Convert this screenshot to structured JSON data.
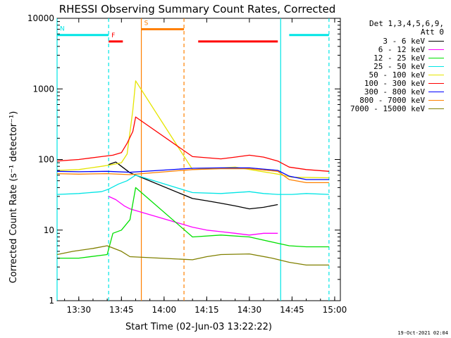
{
  "chart_data": {
    "type": "line",
    "title": "RHESSI Observing Summary Count Rates, Corrected",
    "xlabel": "Start Time (02-Jun-03 13:22:22)",
    "ylabel": "Corrected Count Rate (s⁻¹ detector⁻¹)",
    "yscale": "log",
    "xlim": [
      "13:22:22",
      "15:02:00"
    ],
    "ylim": [
      1,
      10000
    ],
    "xticks": [
      "13:30",
      "13:45",
      "14:00",
      "14:15",
      "14:30",
      "14:45",
      "15:00"
    ],
    "yticks": [
      "1",
      "10",
      "100",
      "1000",
      "10000"
    ],
    "grid": false,
    "legend_position": "top-right",
    "legend_header": [
      "Det 1,3,4,5,6,9,",
      "Att 0"
    ],
    "timestamp": "19-Oct-2021 02:04",
    "bands": [
      {
        "name": "N",
        "color": "#00e5e5",
        "y": 5800,
        "segments": [
          [
            "13:22:22",
            "13:40:30"
          ],
          [
            "14:44:00",
            "14:58:00"
          ]
        ]
      },
      {
        "name": "F",
        "color": "#ff0000",
        "y": 4700,
        "segments": [
          [
            "13:40:30",
            "13:45:30"
          ],
          [
            "14:12:00",
            "14:40:00"
          ]
        ]
      },
      {
        "name": "S",
        "color": "#ff8000",
        "y": 7000,
        "segments": [
          [
            "13:52:00",
            "14:07:00"
          ]
        ]
      }
    ],
    "vlines": [
      {
        "time": "13:22:22",
        "color": "#00e5e5",
        "style": "solid"
      },
      {
        "time": "13:40:30",
        "color": "#00e5e5",
        "style": "dashed"
      },
      {
        "time": "13:52:00",
        "color": "#ff8000",
        "style": "solid"
      },
      {
        "time": "14:07:00",
        "color": "#ff8000",
        "style": "dashed"
      },
      {
        "time": "14:41:00",
        "color": "#00e5e5",
        "style": "solid"
      },
      {
        "time": "14:58:00",
        "color": "#00e5e5",
        "style": "dashed"
      }
    ],
    "series": [
      {
        "name": "3 - 6 keV",
        "color": "#000000",
        "x": [
          "13:40:30",
          "13:43:00",
          "13:45:00",
          "13:48:00",
          "14:10:00",
          "14:15:00",
          "14:20:00",
          "14:25:00",
          "14:30:00",
          "14:35:00",
          "14:40:00"
        ],
        "y": [
          85,
          92,
          80,
          65,
          28,
          26,
          24,
          22,
          20,
          21,
          23
        ]
      },
      {
        "name": "6 - 12 keV",
        "color": "#ff00ff",
        "x": [
          "13:40:30",
          "13:43:00",
          "13:46:00",
          "13:48:00",
          "14:10:00",
          "14:15:00",
          "14:20:00",
          "14:25:00",
          "14:30:00",
          "14:35:00",
          "14:40:00"
        ],
        "y": [
          30,
          27,
          22,
          20,
          11,
          10,
          9.5,
          9,
          8.5,
          9,
          9
        ]
      },
      {
        "name": "12 - 25 keV",
        "color": "#00e000",
        "x": [
          "13:22:22",
          "13:30:00",
          "13:40:00",
          "13:42:00",
          "13:45:00",
          "13:48:00",
          "13:50:00",
          "14:10:00",
          "14:20:00",
          "14:30:00",
          "14:40:00",
          "14:44:00",
          "14:50:00",
          "14:58:00"
        ],
        "y": [
          4.0,
          4.0,
          4.5,
          9,
          10,
          14,
          40,
          8,
          8.5,
          8,
          6.5,
          6.0,
          5.8,
          5.8
        ]
      },
      {
        "name": "25 - 50 keV",
        "color": "#00e5e5",
        "x": [
          "13:22:22",
          "13:30:00",
          "13:38:00",
          "13:40:30",
          "13:44:00",
          "13:47:00",
          "13:50:00",
          "14:10:00",
          "14:20:00",
          "14:30:00",
          "14:35:00",
          "14:40:00",
          "14:45:00",
          "14:50:00",
          "14:58:00"
        ],
        "y": [
          32,
          33,
          35,
          38,
          45,
          50,
          60,
          34,
          33,
          35,
          33,
          32,
          32,
          33,
          32
        ]
      },
      {
        "name": "50 - 100 keV",
        "color": "#e5e500",
        "x": [
          "13:22:22",
          "13:30:00",
          "13:38:00",
          "13:42:00",
          "13:45:00",
          "13:47:00",
          "13:49:00",
          "13:50:00",
          "14:10:00",
          "14:25:00",
          "14:40:00",
          "14:45:00",
          "14:58:00"
        ],
        "y": [
          70,
          72,
          80,
          85,
          90,
          120,
          500,
          1300,
          72,
          78,
          62,
          56,
          55
        ]
      },
      {
        "name": "100 - 300 keV",
        "color": "#ff0000",
        "x": [
          "13:22:22",
          "13:30:00",
          "13:38:00",
          "13:42:00",
          "13:45:00",
          "13:47:00",
          "13:49:00",
          "13:50:00",
          "14:10:00",
          "14:20:00",
          "14:25:00",
          "14:30:00",
          "14:35:00",
          "14:40:00",
          "14:44:00",
          "14:50:00",
          "14:58:00"
        ],
        "y": [
          95,
          100,
          110,
          115,
          125,
          170,
          250,
          400,
          110,
          102,
          108,
          115,
          108,
          95,
          78,
          72,
          68
        ]
      },
      {
        "name": "300 - 800 keV",
        "color": "#0000ff",
        "x": [
          "13:22:22",
          "13:30:00",
          "13:40:00",
          "13:48:00",
          "14:10:00",
          "14:20:00",
          "14:30:00",
          "14:40:00",
          "14:44:00",
          "14:50:00",
          "14:58:00"
        ],
        "y": [
          68,
          67,
          68,
          66,
          75,
          76,
          76,
          70,
          58,
          52,
          52
        ]
      },
      {
        "name": "800 - 7000 keV",
        "color": "#ff8000",
        "x": [
          "13:22:22",
          "13:30:00",
          "13:40:00",
          "13:48:00",
          "14:10:00",
          "14:20:00",
          "14:30:00",
          "14:40:00",
          "14:44:00",
          "14:50:00",
          "14:58:00"
        ],
        "y": [
          63,
          62,
          63,
          61,
          72,
          74,
          74,
          68,
          52,
          47,
          47
        ]
      },
      {
        "name": "7000 - 15000 keV",
        "color": "#808000",
        "x": [
          "13:22:22",
          "13:28:00",
          "13:35:00",
          "13:40:00",
          "13:45:00",
          "13:48:00",
          "14:10:00",
          "14:15:00",
          "14:20:00",
          "14:30:00",
          "14:38:00",
          "14:44:00",
          "14:50:00",
          "14:58:00"
        ],
        "y": [
          4.5,
          5.0,
          5.5,
          6.0,
          5.0,
          4.2,
          3.8,
          4.2,
          4.5,
          4.6,
          4.0,
          3.5,
          3.2,
          3.2
        ]
      }
    ]
  }
}
